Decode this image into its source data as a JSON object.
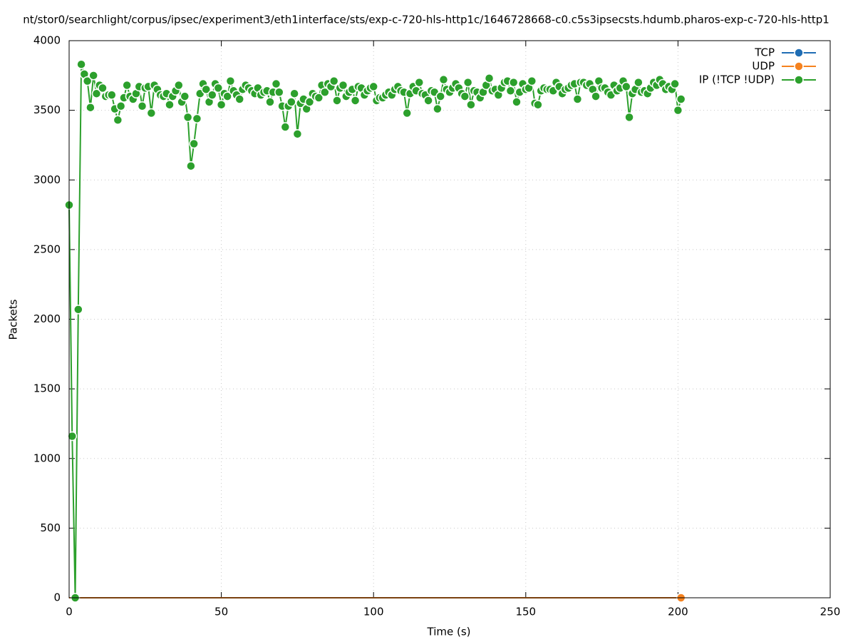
{
  "chart_data": {
    "type": "line",
    "title": "nt/stor0/searchlight/corpus/ipsec/experiment3/eth1interface/sts/exp-c-720-hls-http1c/1646728668-c0.c5s3ipsecsts.hdumb.pharos-exp-c-720-hls-http1",
    "x_label": "Time (s)",
    "y_label": "Packets",
    "xlim": [
      0,
      250
    ],
    "xticks": [
      0,
      50,
      100,
      150,
      200,
      250
    ],
    "ylim": [
      0,
      4000
    ],
    "yticks": [
      0,
      500,
      1000,
      1500,
      2000,
      2500,
      3000,
      3500,
      4000
    ],
    "grid": true,
    "legend": "top-right",
    "x": [
      0,
      1,
      2,
      3,
      4,
      5,
      6,
      7,
      8,
      9,
      10,
      11,
      12,
      13,
      14,
      15,
      16,
      17,
      18,
      19,
      20,
      21,
      22,
      23,
      24,
      25,
      26,
      27,
      28,
      29,
      30,
      31,
      32,
      33,
      34,
      35,
      36,
      37,
      38,
      39,
      40,
      41,
      42,
      43,
      44,
      45,
      46,
      47,
      48,
      49,
      50,
      51,
      52,
      53,
      54,
      55,
      56,
      57,
      58,
      59,
      60,
      61,
      62,
      63,
      64,
      65,
      66,
      67,
      68,
      69,
      70,
      71,
      72,
      73,
      74,
      75,
      76,
      77,
      78,
      79,
      80,
      81,
      82,
      83,
      84,
      85,
      86,
      87,
      88,
      89,
      90,
      91,
      92,
      93,
      94,
      95,
      96,
      97,
      98,
      99,
      100,
      101,
      102,
      103,
      104,
      105,
      106,
      107,
      108,
      109,
      110,
      111,
      112,
      113,
      114,
      115,
      116,
      117,
      118,
      119,
      120,
      121,
      122,
      123,
      124,
      125,
      126,
      127,
      128,
      129,
      130,
      131,
      132,
      133,
      134,
      135,
      136,
      137,
      138,
      139,
      140,
      141,
      142,
      143,
      144,
      145,
      146,
      147,
      148,
      149,
      150,
      151,
      152,
      153,
      154,
      155,
      156,
      157,
      158,
      159,
      160,
      161,
      162,
      163,
      164,
      165,
      166,
      167,
      168,
      169,
      170,
      171,
      172,
      173,
      174,
      175,
      176,
      177,
      178,
      179,
      180,
      181,
      182,
      183,
      184,
      185,
      186,
      187,
      188,
      189,
      190,
      191,
      192,
      193,
      194,
      195,
      196,
      197,
      198,
      199,
      200,
      201
    ],
    "series": [
      {
        "name": "TCP",
        "color": "#1f6db4",
        "values": [
          0,
          0,
          0,
          0,
          0,
          0,
          0,
          0,
          0,
          0,
          0,
          0,
          0,
          0,
          0,
          0,
          0,
          0,
          0,
          0,
          0,
          0,
          0,
          0,
          0,
          0,
          0,
          0,
          0,
          0,
          0,
          0,
          0,
          0,
          0,
          0,
          0,
          0,
          0,
          0,
          0,
          0,
          0,
          0,
          0,
          0,
          0,
          0,
          0,
          0,
          0,
          0,
          0,
          0,
          0,
          0,
          0,
          0,
          0,
          0,
          0,
          0,
          0,
          0,
          0,
          0,
          0,
          0,
          0,
          0,
          0,
          0,
          0,
          0,
          0,
          0,
          0,
          0,
          0,
          0,
          0,
          0,
          0,
          0,
          0,
          0,
          0,
          0,
          0,
          0,
          0,
          0,
          0,
          0,
          0,
          0,
          0,
          0,
          0,
          0,
          0,
          0,
          0,
          0,
          0,
          0,
          0,
          0,
          0,
          0,
          0,
          0,
          0,
          0,
          0,
          0,
          0,
          0,
          0,
          0,
          0,
          0,
          0,
          0,
          0,
          0,
          0,
          0,
          0,
          0,
          0,
          0,
          0,
          0,
          0,
          0,
          0,
          0,
          0,
          0,
          0,
          0,
          0,
          0,
          0,
          0,
          0,
          0,
          0,
          0,
          0,
          0,
          0,
          0,
          0,
          0,
          0,
          0,
          0,
          0,
          0,
          0,
          0,
          0,
          0,
          0,
          0,
          0,
          0,
          0,
          0,
          0,
          0,
          0,
          0,
          0,
          0,
          0,
          0,
          0,
          0,
          0,
          0,
          0,
          0,
          0,
          0,
          0,
          0,
          0,
          0,
          0,
          0,
          0,
          0,
          0,
          0,
          0,
          0,
          0,
          0,
          0
        ]
      },
      {
        "name": "UDP",
        "color": "#f5821f",
        "values": [
          0,
          0,
          0,
          0,
          0,
          0,
          0,
          0,
          0,
          0,
          0,
          0,
          0,
          0,
          0,
          0,
          0,
          0,
          0,
          0,
          0,
          0,
          0,
          0,
          0,
          0,
          0,
          0,
          0,
          0,
          0,
          0,
          0,
          0,
          0,
          0,
          0,
          0,
          0,
          0,
          0,
          0,
          0,
          0,
          0,
          0,
          0,
          0,
          0,
          0,
          0,
          0,
          0,
          0,
          0,
          0,
          0,
          0,
          0,
          0,
          0,
          0,
          0,
          0,
          0,
          0,
          0,
          0,
          0,
          0,
          0,
          0,
          0,
          0,
          0,
          0,
          0,
          0,
          0,
          0,
          0,
          0,
          0,
          0,
          0,
          0,
          0,
          0,
          0,
          0,
          0,
          0,
          0,
          0,
          0,
          0,
          0,
          0,
          0,
          0,
          0,
          0,
          0,
          0,
          0,
          0,
          0,
          0,
          0,
          0,
          0,
          0,
          0,
          0,
          0,
          0,
          0,
          0,
          0,
          0,
          0,
          0,
          0,
          0,
          0,
          0,
          0,
          0,
          0,
          0,
          0,
          0,
          0,
          0,
          0,
          0,
          0,
          0,
          0,
          0,
          0,
          0,
          0,
          0,
          0,
          0,
          0,
          0,
          0,
          0,
          0,
          0,
          0,
          0,
          0,
          0,
          0,
          0,
          0,
          0,
          0,
          0,
          0,
          0,
          0,
          0,
          0,
          0,
          0,
          0,
          0,
          0,
          0,
          0,
          0,
          0,
          0,
          0,
          0,
          0,
          0,
          0,
          0,
          0,
          0,
          0,
          0,
          0,
          0,
          0,
          0,
          0,
          0,
          0,
          0,
          0,
          0,
          0,
          0,
          0,
          0,
          0
        ]
      },
      {
        "name": "IP (!TCP  !UDP)",
        "color": "#2ca02c",
        "values": [
          2820,
          1160,
          0,
          2070,
          3830,
          3760,
          3710,
          3520,
          3750,
          3620,
          3680,
          3660,
          3600,
          3610,
          3610,
          3510,
          3430,
          3530,
          3590,
          3680,
          3600,
          3580,
          3620,
          3670,
          3530,
          3660,
          3670,
          3480,
          3680,
          3650,
          3610,
          3600,
          3620,
          3540,
          3600,
          3640,
          3680,
          3560,
          3600,
          3450,
          3100,
          3260,
          3440,
          3620,
          3690,
          3650,
          3560,
          3610,
          3690,
          3660,
          3540,
          3620,
          3600,
          3710,
          3640,
          3610,
          3580,
          3650,
          3680,
          3660,
          3640,
          3620,
          3660,
          3610,
          3630,
          3640,
          3560,
          3630,
          3690,
          3630,
          3530,
          3380,
          3530,
          3560,
          3620,
          3330,
          3550,
          3580,
          3510,
          3560,
          3620,
          3600,
          3590,
          3680,
          3630,
          3690,
          3670,
          3710,
          3570,
          3660,
          3680,
          3600,
          3630,
          3650,
          3570,
          3670,
          3660,
          3610,
          3640,
          3660,
          3670,
          3570,
          3590,
          3590,
          3610,
          3630,
          3610,
          3650,
          3670,
          3640,
          3630,
          3480,
          3620,
          3670,
          3640,
          3700,
          3620,
          3610,
          3570,
          3640,
          3630,
          3510,
          3600,
          3720,
          3650,
          3630,
          3660,
          3690,
          3660,
          3620,
          3600,
          3700,
          3540,
          3640,
          3630,
          3590,
          3630,
          3680,
          3730,
          3640,
          3650,
          3610,
          3660,
          3700,
          3710,
          3640,
          3700,
          3560,
          3630,
          3690,
          3650,
          3660,
          3710,
          3550,
          3540,
          3640,
          3660,
          3650,
          3650,
          3640,
          3700,
          3670,
          3620,
          3650,
          3660,
          3680,
          3690,
          3580,
          3700,
          3700,
          3680,
          3690,
          3650,
          3600,
          3710,
          3660,
          3660,
          3630,
          3610,
          3680,
          3640,
          3660,
          3710,
          3670,
          3450,
          3620,
          3650,
          3700,
          3630,
          3640,
          3620,
          3660,
          3700,
          3680,
          3720,
          3690,
          3650,
          3670,
          3650,
          3690,
          3500,
          3580
        ]
      }
    ]
  }
}
